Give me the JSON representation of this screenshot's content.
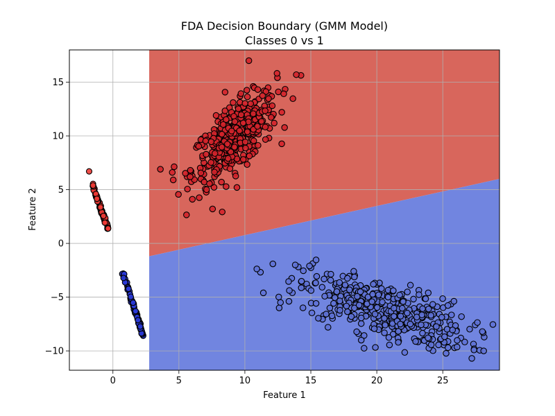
{
  "chart_data": {
    "type": "scatter",
    "title": "FDA Decision Boundary (GMM Model)",
    "subtitle": "Classes 0 vs 1",
    "xlabel": "Feature 1",
    "ylabel": "Feature 2",
    "xlim": [
      -3.3,
      29.3
    ],
    "ylim": [
      -11.8,
      18.0
    ],
    "xticks": [
      0,
      5,
      10,
      15,
      20,
      25
    ],
    "yticks": [
      -10,
      -5,
      0,
      5,
      10,
      15
    ],
    "grid": true,
    "region_x_start": 2.75,
    "boundary": {
      "x0": 2.75,
      "y0": -1.2,
      "x1": 29.3,
      "y1": 6.0
    },
    "colors": {
      "class0_region": "#d8665c",
      "class1_region": "#7185e0",
      "class0_point": "#d4232b",
      "class1_point": "#5f72d6",
      "projected0_point": "#ee3b35",
      "projected1_point": "#2a3ad8",
      "point_edge": "#000000"
    },
    "clusters": {
      "class0_main": {
        "center": [
          9.2,
          9.8
        ],
        "count": 420,
        "spread": [
          1.6,
          2.1
        ],
        "corr": 0.7
      },
      "class1_main": {
        "center": [
          20.5,
          -6.2
        ],
        "count": 420,
        "spread": [
          3.2,
          1.7
        ],
        "corr": -0.65
      }
    },
    "projections": {
      "class0": {
        "from": [
          -1.6,
          5.6
        ],
        "to": [
          -0.35,
          1.3
        ],
        "count": 80,
        "first_point": [
          -1.8,
          6.7
        ]
      },
      "class1": {
        "from": [
          0.75,
          -2.7
        ],
        "to": [
          2.3,
          -8.6
        ],
        "count": 80
      }
    },
    "outliers": {
      "class0": [
        [
          10.3,
          17.0
        ],
        [
          13.9,
          15.7
        ],
        [
          3.6,
          6.9
        ],
        [
          4.5,
          6.6
        ],
        [
          9.4,
          5.2
        ],
        [
          7.1,
          5.0
        ],
        [
          12.8,
          12.2
        ]
      ],
      "class1": [
        [
          28.1,
          -10.0
        ],
        [
          27.2,
          -10.7
        ],
        [
          28.0,
          -8.2
        ],
        [
          11.4,
          -4.6
        ],
        [
          12.6,
          -6.0
        ],
        [
          14.9,
          -2.1
        ],
        [
          23.9,
          -4.6
        ],
        [
          16.3,
          -7.8
        ],
        [
          25.4,
          -9.7
        ],
        [
          12.7,
          -5.5
        ]
      ]
    }
  }
}
